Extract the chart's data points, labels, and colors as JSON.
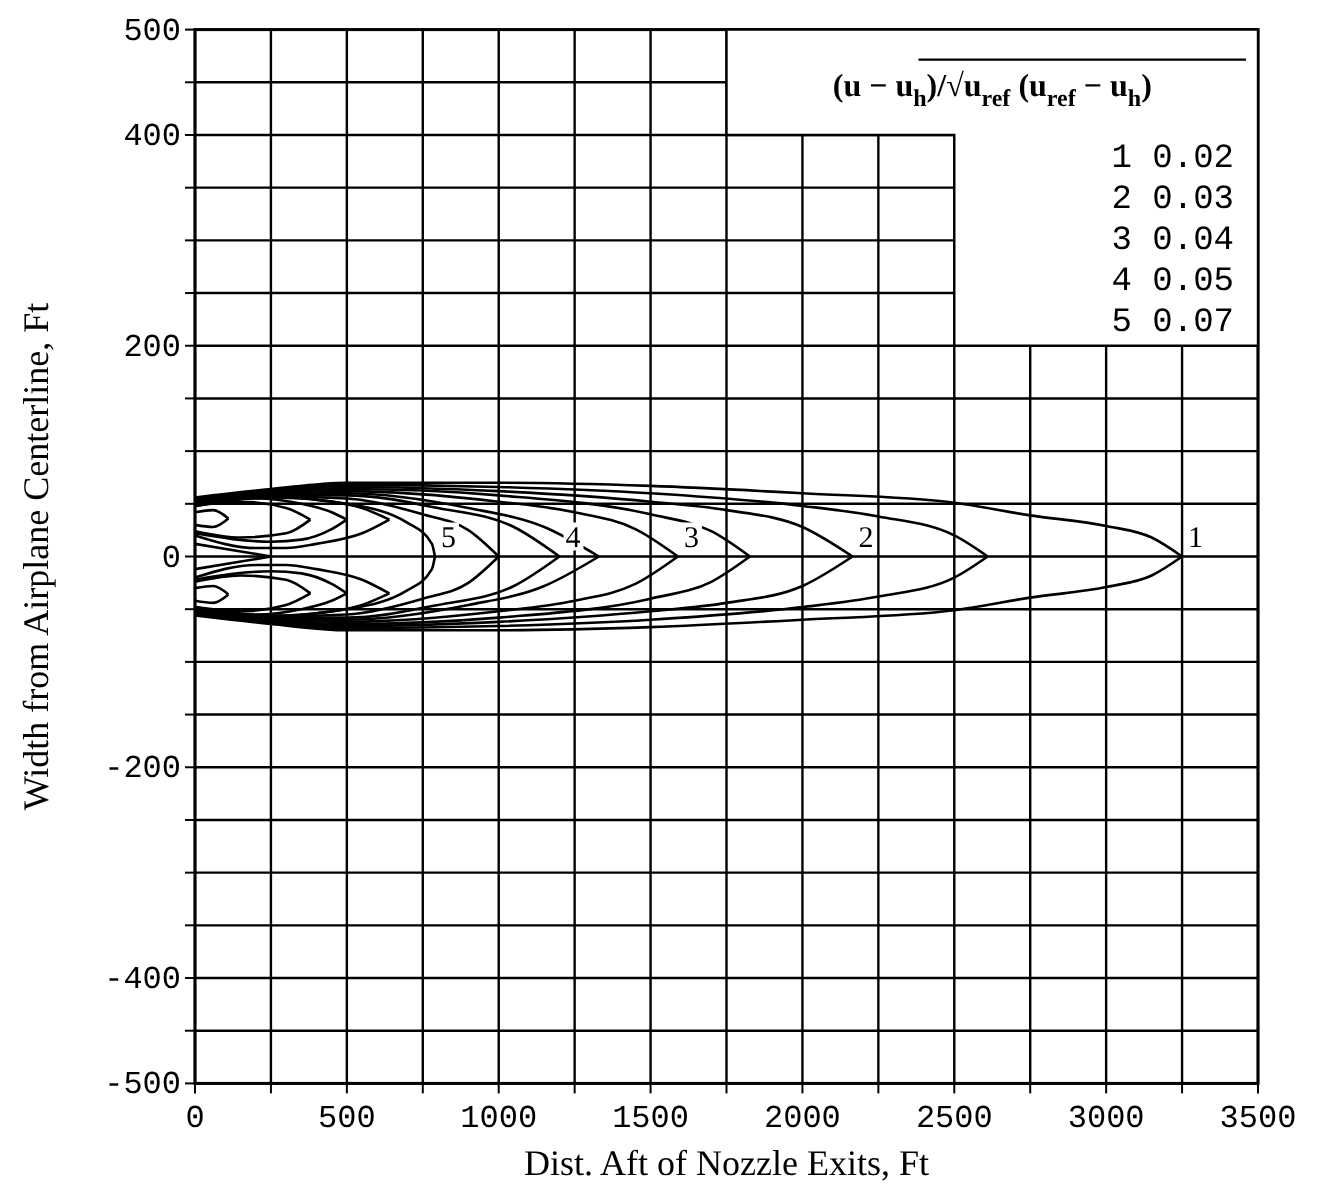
{
  "chart_data": {
    "type": "line",
    "xlabel": "Dist. Aft of Nozzle Exits, Ft",
    "ylabel": "Width from Airplane Centerline, Ft",
    "xlim": [
      0,
      3500
    ],
    "ylim": [
      -500,
      500
    ],
    "xticks": [
      0,
      {
        "value": 250,
        "label": null
      },
      500,
      {
        "value": 750,
        "label": null
      },
      1000,
      {
        "value": 1250,
        "label": null
      },
      1500,
      {
        "value": 1750,
        "label": null
      },
      2000,
      {
        "value": 2250,
        "label": null
      },
      2500,
      {
        "value": 2750,
        "label": null
      },
      3000,
      {
        "value": 3250,
        "label": null
      },
      3500
    ],
    "yticks": [
      -500,
      {
        "value": -450,
        "label": null
      },
      -400,
      {
        "value": -350,
        "label": null
      },
      {
        "value": -300,
        "label": null
      },
      {
        "value": -250,
        "label": null
      },
      -200,
      {
        "value": -150,
        "label": null
      },
      {
        "value": -100,
        "label": null
      },
      {
        "value": -50,
        "label": null
      },
      0,
      {
        "value": 50,
        "label": null
      },
      {
        "value": 100,
        "label": null
      },
      {
        "value": 150,
        "label": null
      },
      200,
      {
        "value": 250,
        "label": null
      },
      {
        "value": 300,
        "label": null
      },
      {
        "value": 350,
        "label": null
      },
      400,
      {
        "value": 450,
        "label": null
      },
      500
    ],
    "grid": true,
    "marker": "none",
    "line_style": "solid",
    "series": [
      {
        "color": "#000000",
        "x": [
          0,
          250,
          500,
          1000,
          1500,
          2000,
          2500,
          2750,
          3000,
          3150,
          3250
        ],
        "values": [
          56,
          64,
          70,
          70,
          67,
          60,
          51,
          39,
          29,
          18,
          0
        ]
      },
      {
        "color": "#000000",
        "x": [
          0,
          250,
          500,
          1000,
          1500,
          2000,
          2500,
          2750,
          3000,
          3150,
          3250
        ],
        "values": [
          -56,
          -64,
          -70,
          -70,
          -67,
          -60,
          -51,
          -39,
          -29,
          -18,
          0
        ]
      },
      {
        "color": "#000000",
        "x": [
          0,
          250,
          500,
          1000,
          1500,
          2000,
          2250,
          2500,
          2610
        ],
        "values": [
          55,
          63,
          68,
          66,
          60,
          48,
          38,
          20,
          0
        ]
      },
      {
        "color": "#000000",
        "x": [
          0,
          250,
          500,
          1000,
          1500,
          2000,
          2250,
          2500,
          2610
        ],
        "values": [
          -55,
          -63,
          -68,
          -66,
          -60,
          -48,
          -38,
          -20,
          0
        ]
      },
      {
        "color": "#000000",
        "x": [
          0,
          250,
          500,
          1000,
          1500,
          1750,
          2000,
          2165
        ],
        "values": [
          54,
          62,
          66,
          62,
          52,
          44,
          28,
          0
        ]
      },
      {
        "color": "#000000",
        "x": [
          0,
          250,
          500,
          1000,
          1500,
          1750,
          2000,
          2165
        ],
        "values": [
          -54,
          -62,
          -66,
          -62,
          -52,
          -44,
          -28,
          0
        ]
      },
      {
        "color": "#000000",
        "x": [
          0,
          250,
          500,
          1000,
          1500,
          1700,
          1827
        ],
        "values": [
          53,
          61,
          64,
          58,
          40,
          24,
          0
        ]
      },
      {
        "color": "#000000",
        "x": [
          0,
          250,
          500,
          1000,
          1500,
          1700,
          1827
        ],
        "values": [
          -53,
          -61,
          -64,
          -58,
          -40,
          -24,
          0
        ]
      },
      {
        "color": "#000000",
        "x": [
          0,
          250,
          500,
          1000,
          1250,
          1450,
          1590
        ],
        "values": [
          52,
          60,
          62,
          52,
          42,
          26,
          0
        ]
      },
      {
        "color": "#000000",
        "x": [
          0,
          250,
          500,
          1000,
          1250,
          1450,
          1590
        ],
        "values": [
          -52,
          -60,
          -62,
          -52,
          -42,
          -26,
          0
        ]
      },
      {
        "color": "#000000",
        "x": [
          0,
          250,
          500,
          900,
          1150,
          1330
        ],
        "values": [
          51,
          59,
          60,
          46,
          28,
          0
        ]
      },
      {
        "color": "#000000",
        "x": [
          0,
          250,
          500,
          900,
          1150,
          1330
        ],
        "values": [
          -51,
          -59,
          -60,
          -46,
          -28,
          0
        ]
      },
      {
        "color": "#000000",
        "x": [
          0,
          250,
          500,
          800,
          1050,
          1200
        ],
        "values": [
          50,
          58,
          58,
          46,
          28,
          0
        ]
      },
      {
        "color": "#000000",
        "x": [
          0,
          250,
          500,
          800,
          1050,
          1200
        ],
        "values": [
          -50,
          -58,
          -58,
          -46,
          -28,
          0
        ]
      },
      {
        "color": "#000000",
        "x": [
          0,
          250,
          500,
          750,
          900,
          1000
        ],
        "values": [
          49,
          57,
          55,
          40,
          25,
          0
        ]
      },
      {
        "color": "#000000",
        "x": [
          0,
          250,
          500,
          750,
          900,
          1000
        ],
        "values": [
          -49,
          -57,
          -55,
          -40,
          -25,
          0
        ]
      },
      {
        "color": "#000000",
        "x": [
          0,
          250,
          500,
          700,
          780,
          790
        ],
        "values": [
          48,
          56,
          50,
          32,
          12,
          0
        ]
      },
      {
        "color": "#000000",
        "x": [
          0,
          250,
          500,
          700,
          780,
          790
        ],
        "values": [
          -48,
          -56,
          -50,
          -32,
          -12,
          0
        ]
      },
      {
        "color": "#000000",
        "x": [
          0,
          250
        ],
        "values": [
          12,
          0
        ]
      },
      {
        "color": "#000000",
        "x": [
          0,
          250
        ],
        "values": [
          -12,
          0
        ]
      },
      {
        "color": "#000000",
        "x": [
          0,
          200,
          400,
          550,
          640
        ],
        "values": [
          52,
          58,
          54,
          46,
          35
        ]
      },
      {
        "color": "#000000",
        "x": [
          0,
          200,
          300,
          400,
          550,
          640
        ],
        "values": [
          20,
          8,
          8,
          12,
          22,
          35
        ]
      },
      {
        "color": "#000000",
        "x": [
          0,
          200,
          400,
          550,
          640
        ],
        "values": [
          -52,
          -58,
          -54,
          -46,
          -35
        ]
      },
      {
        "color": "#000000",
        "x": [
          0,
          200,
          300,
          400,
          550,
          640
        ],
        "values": [
          -20,
          -8,
          -8,
          -12,
          -22,
          -35
        ]
      },
      {
        "color": "#000000",
        "x": [
          0,
          200,
          350,
          450,
          500
        ],
        "values": [
          50,
          55,
          50,
          42,
          35
        ]
      },
      {
        "color": "#000000",
        "x": [
          0,
          250,
          350,
          450,
          500
        ],
        "values": [
          22,
          14,
          16,
          26,
          35
        ]
      },
      {
        "color": "#000000",
        "x": [
          0,
          200,
          350,
          450,
          500
        ],
        "values": [
          -50,
          -55,
          -50,
          -42,
          -35
        ]
      },
      {
        "color": "#000000",
        "x": [
          0,
          250,
          350,
          450,
          500
        ],
        "values": [
          -22,
          -14,
          -16,
          -26,
          -35
        ]
      },
      {
        "color": "#000000",
        "x": [
          0,
          150,
          300,
          380
        ],
        "values": [
          48,
          52,
          46,
          35
        ]
      },
      {
        "color": "#000000",
        "x": [
          0,
          150,
          300,
          380
        ],
        "values": [
          24,
          18,
          22,
          35
        ]
      },
      {
        "color": "#000000",
        "x": [
          0,
          150,
          300,
          380
        ],
        "values": [
          -48,
          -52,
          -46,
          -35
        ]
      },
      {
        "color": "#000000",
        "x": [
          0,
          150,
          300,
          380
        ],
        "values": [
          -24,
          -18,
          -22,
          -35
        ]
      },
      {
        "color": "#000000",
        "x": [
          0,
          60,
          110
        ],
        "values": [
          42,
          44,
          36
        ]
      },
      {
        "color": "#000000",
        "x": [
          0,
          60,
          110
        ],
        "values": [
          30,
          28,
          36
        ]
      },
      {
        "color": "#000000",
        "x": [
          0,
          60,
          110
        ],
        "values": [
          -42,
          -44,
          -36
        ]
      },
      {
        "color": "#000000",
        "x": [
          0,
          60,
          110
        ],
        "values": [
          -30,
          -28,
          -36
        ]
      }
    ],
    "annotations": [
      {
        "text": "1",
        "x": 3250,
        "y": 0
      },
      {
        "text": "2",
        "x": 2165,
        "y": 0
      },
      {
        "text": "3",
        "x": 1590,
        "y": 0
      },
      {
        "text": "4",
        "x": 1200,
        "y": 0
      },
      {
        "text": "5",
        "x": 790,
        "y": 0
      },
      "(u − u$_{h}$)/√u$_{ref}$ (u$_{ref}$ − u$_{h}$)",
      "1 0.02",
      "2 0.03",
      "3 0.04",
      "4 0.05",
      "5 0.07"
    ]
  }
}
